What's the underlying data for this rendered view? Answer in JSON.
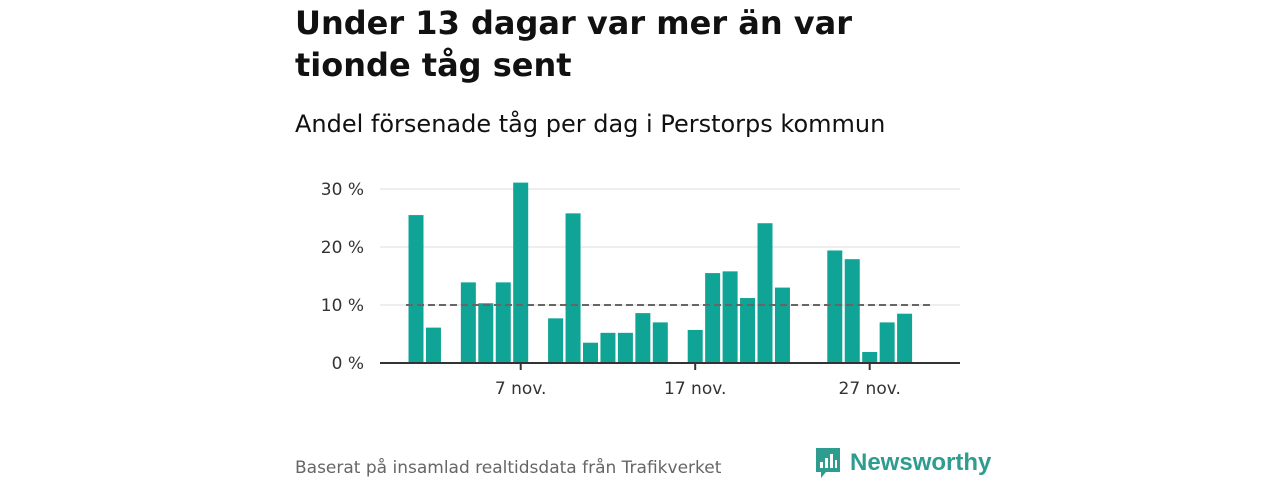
{
  "title": "Under 13 dagar var mer än var tionde tåg sent",
  "subtitle": "Andel försenade tåg per dag i Perstorps kommun",
  "source": "Baserat på insamlad realtidsdata från Trafikverket",
  "logo": {
    "text": "Newsworthy",
    "icon": "newsworthy-logo-icon"
  },
  "colors": {
    "bar": "#0fa495",
    "grid": "#dddddd",
    "axis": "#333333",
    "reference": "#666666",
    "logo": "#2e9c8e"
  },
  "chart_data": {
    "type": "bar",
    "x_unit": "day of November",
    "x": [
      1,
      2,
      3,
      4,
      5,
      6,
      7,
      8,
      9,
      10,
      11,
      12,
      13,
      14,
      15,
      16,
      17,
      18,
      19,
      20,
      21,
      22,
      23,
      24,
      25,
      26,
      27,
      28,
      29,
      30,
      31
    ],
    "values": [
      25.5,
      6.1,
      null,
      13.9,
      10.3,
      13.9,
      31.1,
      null,
      7.7,
      25.8,
      3.5,
      5.2,
      5.2,
      8.6,
      7.0,
      null,
      5.7,
      15.5,
      15.8,
      11.2,
      24.1,
      13.0,
      null,
      null,
      19.4,
      17.9,
      1.9,
      7.0,
      8.5,
      null,
      null
    ],
    "ylim": [
      0,
      30
    ],
    "yticks": [
      {
        "value": 0,
        "label": "0 %"
      },
      {
        "value": 10,
        "label": "10 %"
      },
      {
        "value": 20,
        "label": "20 %"
      },
      {
        "value": 30,
        "label": "30 %"
      }
    ],
    "xticks": [
      {
        "x": 7,
        "label": "7 nov."
      },
      {
        "x": 17,
        "label": "17 nov."
      },
      {
        "x": 27,
        "label": "27 nov."
      }
    ],
    "reference_line": {
      "value": 10,
      "style": "dashed"
    },
    "grid": true,
    "legend": "none"
  }
}
